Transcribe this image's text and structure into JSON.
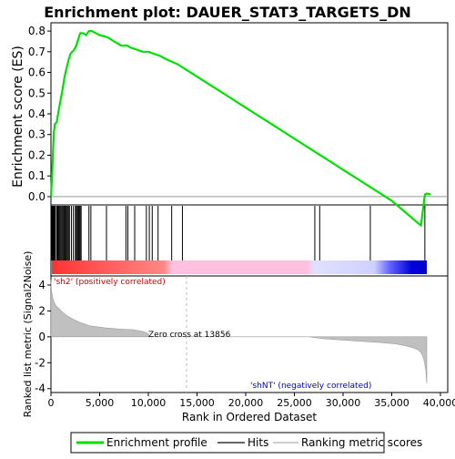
{
  "chart_data": [
    {
      "type": "line",
      "title": "Enrichment plot: DAUER_STAT3_TARGETS_DN",
      "ylabel": "Enrichment score (ES)",
      "xlim": [
        0,
        40000
      ],
      "ylim": [
        -0.04,
        0.84
      ],
      "y_ticks": [
        "0.0",
        "0.1",
        "0.2",
        "0.3",
        "0.4",
        "0.5",
        "0.6",
        "0.7",
        "0.8"
      ],
      "grid": false,
      "series": [
        {
          "name": "Enrichment profile",
          "color": "#00e000",
          "x": [
            0,
            100,
            200,
            300,
            400,
            600,
            800,
            1000,
            1200,
            1400,
            1600,
            1800,
            2000,
            2200,
            2400,
            2600,
            2800,
            3000,
            3300,
            3600,
            3900,
            4200,
            4600,
            5000,
            5800,
            6500,
            7200,
            7800,
            8200,
            8800,
            9400,
            10000,
            10600,
            11200,
            12000,
            13000,
            14000,
            15000,
            16000,
            17000,
            18000,
            19000,
            20000,
            21000,
            22000,
            23000,
            24000,
            25000,
            26000,
            27000,
            28000,
            29000,
            30000,
            31000,
            32000,
            33000,
            34000,
            35000,
            36000,
            37000,
            38000,
            38400,
            38600,
            39000
          ],
          "y": [
            0.0,
            0.08,
            0.2,
            0.31,
            0.35,
            0.36,
            0.42,
            0.47,
            0.52,
            0.58,
            0.62,
            0.66,
            0.69,
            0.7,
            0.71,
            0.73,
            0.76,
            0.79,
            0.79,
            0.78,
            0.8,
            0.8,
            0.79,
            0.78,
            0.77,
            0.75,
            0.73,
            0.73,
            0.72,
            0.71,
            0.7,
            0.7,
            0.69,
            0.68,
            0.66,
            0.64,
            0.61,
            0.58,
            0.55,
            0.52,
            0.49,
            0.46,
            0.43,
            0.4,
            0.37,
            0.34,
            0.31,
            0.28,
            0.25,
            0.22,
            0.19,
            0.16,
            0.13,
            0.1,
            0.07,
            0.04,
            0.01,
            -0.02,
            -0.06,
            -0.1,
            -0.14,
            0.01,
            0.015,
            0.01
          ]
        }
      ]
    },
    {
      "type": "bar",
      "title": "Hits",
      "x": [
        40,
        80,
        120,
        160,
        200,
        250,
        300,
        350,
        400,
        450,
        600,
        700,
        800,
        900,
        1000,
        1100,
        1200,
        1300,
        1400,
        1500,
        1600,
        1700,
        1800,
        1900,
        2100,
        2300,
        2500,
        2600,
        2700,
        2800,
        2900,
        3000,
        3100,
        3900,
        4100,
        5700,
        7700,
        7900,
        8600,
        9800,
        10100,
        10400,
        11000,
        12400,
        13500,
        27100,
        27600,
        32800,
        38400
      ],
      "xlim": [
        0,
        40000
      ],
      "gradient_colors": [
        "#ff0000",
        "#ff9999",
        "#ffc0ff",
        "#e0e0ff",
        "#6666ff",
        "#0000cc"
      ]
    },
    {
      "type": "area",
      "xlabel": "Rank in Ordered Dataset",
      "ylabel": "Ranked list metric (Signal2Noise)",
      "xlim": [
        0,
        40000
      ],
      "ylim": [
        -4.3,
        4.7
      ],
      "x_ticks": [
        "0",
        "5,000",
        "10,000",
        "15,000",
        "20,000",
        "25,000",
        "30,000",
        "35,000",
        "40,000"
      ],
      "y_ticks": [
        "4",
        "2",
        "0",
        "-2",
        "-4"
      ],
      "series": [
        {
          "name": "Ranking metric scores",
          "color": "#c0c0c0",
          "x": [
            0,
            50,
            150,
            300,
            500,
            800,
            1200,
            1700,
            2300,
            3000,
            4000,
            5500,
            7000,
            8500,
            9500,
            10000,
            10100,
            26500,
            28000,
            30000,
            32000,
            34000,
            35500,
            36500,
            37200,
            37700,
            38000,
            38200,
            38350,
            38500,
            38600
          ],
          "y": [
            4.4,
            3.6,
            3.1,
            2.7,
            2.4,
            2.2,
            1.9,
            1.6,
            1.35,
            1.1,
            0.85,
            0.7,
            0.6,
            0.55,
            0.4,
            0.25,
            0.0,
            0.0,
            -0.15,
            -0.25,
            -0.35,
            -0.45,
            -0.55,
            -0.7,
            -0.85,
            -1.0,
            -1.2,
            -1.5,
            -1.9,
            -2.6,
            -3.6
          ]
        }
      ],
      "annotations": [
        "Zero cross at 13856",
        "'sh2' (positively correlated)",
        "'shNT' (negatively correlated)"
      ]
    }
  ],
  "legend": {
    "items": [
      {
        "label": "Enrichment profile",
        "color": "#00e000"
      },
      {
        "label": "Hits",
        "color": "#000000"
      },
      {
        "label": "Ranking metric scores",
        "color": "#c0c0c0"
      }
    ]
  }
}
